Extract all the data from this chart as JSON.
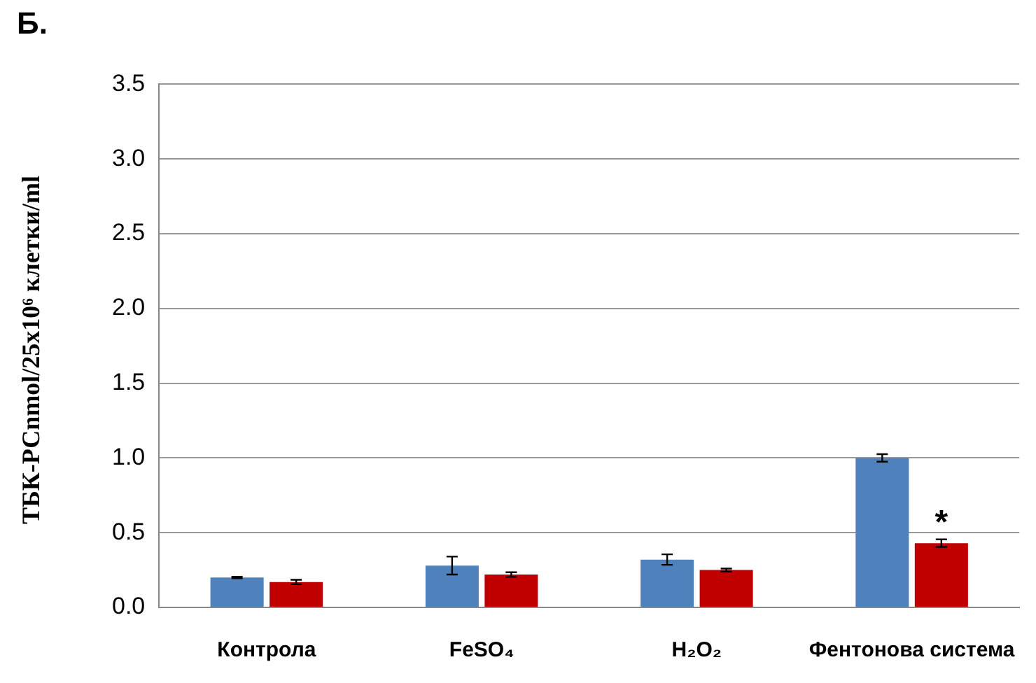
{
  "chart_data": {
    "type": "bar",
    "title": "Б.",
    "ylabel": "ТБК-РСnmol/25x10⁶ клетки/ml",
    "categories": [
      "Контрола",
      "FeSO₄",
      "H₂O₂",
      "Фентонова система"
    ],
    "series": [
      {
        "color": "#4f81bd",
        "values": [
          0.2,
          0.28,
          0.32,
          1.0
        ],
        "errors": [
          0.005,
          0.06,
          0.035,
          0.025
        ]
      },
      {
        "color": "#c00000",
        "values": [
          0.17,
          0.22,
          0.25,
          0.43
        ],
        "errors": [
          0.015,
          0.015,
          0.01,
          0.025
        ]
      }
    ],
    "ylim": [
      0,
      3.5
    ],
    "yticks": [
      {
        "value": 0,
        "label": "0.0"
      },
      0.5,
      {
        "value": 1,
        "label": "1.0"
      },
      1.5,
      {
        "value": 2,
        "label": "2.0"
      },
      2.5,
      {
        "value": 3,
        "label": "3.0"
      },
      3.5
    ],
    "grid": "y",
    "legend": false,
    "annotations": [
      {
        "text": "*",
        "x": "Фентонова система",
        "y": 0.56
      }
    ]
  }
}
